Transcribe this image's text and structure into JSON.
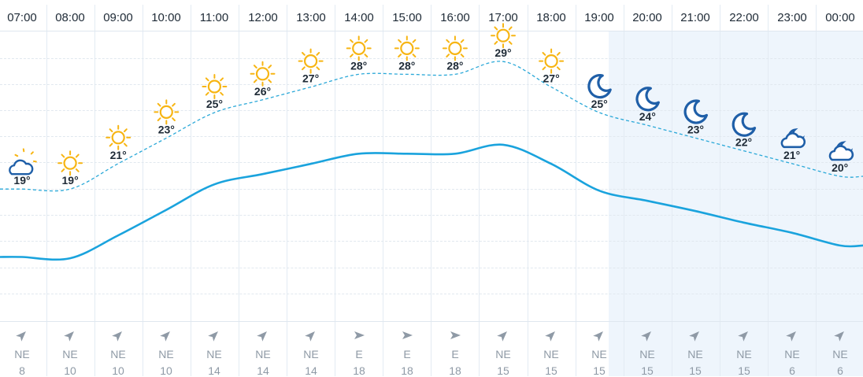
{
  "hours": [
    "07:00",
    "08:00",
    "09:00",
    "10:00",
    "11:00",
    "12:00",
    "13:00",
    "14:00",
    "15:00",
    "16:00",
    "17:00",
    "18:00",
    "19:00",
    "20:00",
    "21:00",
    "22:00",
    "23:00",
    "00:00"
  ],
  "chart_data": {
    "type": "line",
    "x": [
      "07:00",
      "08:00",
      "09:00",
      "10:00",
      "11:00",
      "12:00",
      "13:00",
      "14:00",
      "15:00",
      "16:00",
      "17:00",
      "18:00",
      "19:00",
      "20:00",
      "21:00",
      "22:00",
      "23:00",
      "00:00"
    ],
    "series": [
      {
        "values": [
          19,
          19,
          21,
          23,
          25,
          26,
          27,
          28,
          28,
          28,
          29,
          27,
          25,
          24,
          23,
          22,
          21,
          20
        ],
        "style": "dashed",
        "labels": [
          "19°",
          "19°",
          "21°",
          "23°",
          "25°",
          "26°",
          "27°",
          "28°",
          "28°",
          "28°",
          "29°",
          "27°",
          "25°",
          "24°",
          "23°",
          "22°",
          "21°",
          "20°"
        ]
      },
      {
        "values": [
          17.5,
          17.4,
          19.2,
          21.2,
          23.2,
          24.0,
          24.8,
          25.6,
          25.6,
          25.6,
          26.3,
          24.8,
          22.7,
          21.9,
          21.1,
          20.2,
          19.4,
          18.4
        ],
        "style": "solid"
      }
    ],
    "grid": true,
    "legend": "none"
  },
  "icons": [
    "partly-cloudy-night-icon",
    "sun-icon",
    "sun-icon",
    "sun-icon",
    "sun-icon",
    "sun-icon",
    "sun-icon",
    "sun-icon",
    "sun-icon",
    "sun-icon",
    "sun-icon",
    "sun-icon",
    "moon-icon",
    "moon-icon",
    "moon-icon",
    "moon-icon",
    "cloudy-night-icon",
    "cloudy-night-icon"
  ],
  "night_start_index": 12,
  "wind": {
    "directions": [
      "NE",
      "NE",
      "NE",
      "NE",
      "NE",
      "NE",
      "NE",
      "E",
      "E",
      "E",
      "NE",
      "NE",
      "NE",
      "NE",
      "NE",
      "NE",
      "NE",
      "NE"
    ],
    "speeds": [
      "8",
      "10",
      "10",
      "10",
      "14",
      "14",
      "14",
      "18",
      "18",
      "18",
      "15",
      "15",
      "15",
      "15",
      "15",
      "15",
      "6",
      "6"
    ]
  },
  "colors": {
    "sun": "#f7b513",
    "moon": "#1f5fa8",
    "solid_line": "#1aa3dd",
    "dashed_line": "#2aa8d8",
    "night_bg": "#eef5fc",
    "arrow": "#8f9aa6"
  }
}
